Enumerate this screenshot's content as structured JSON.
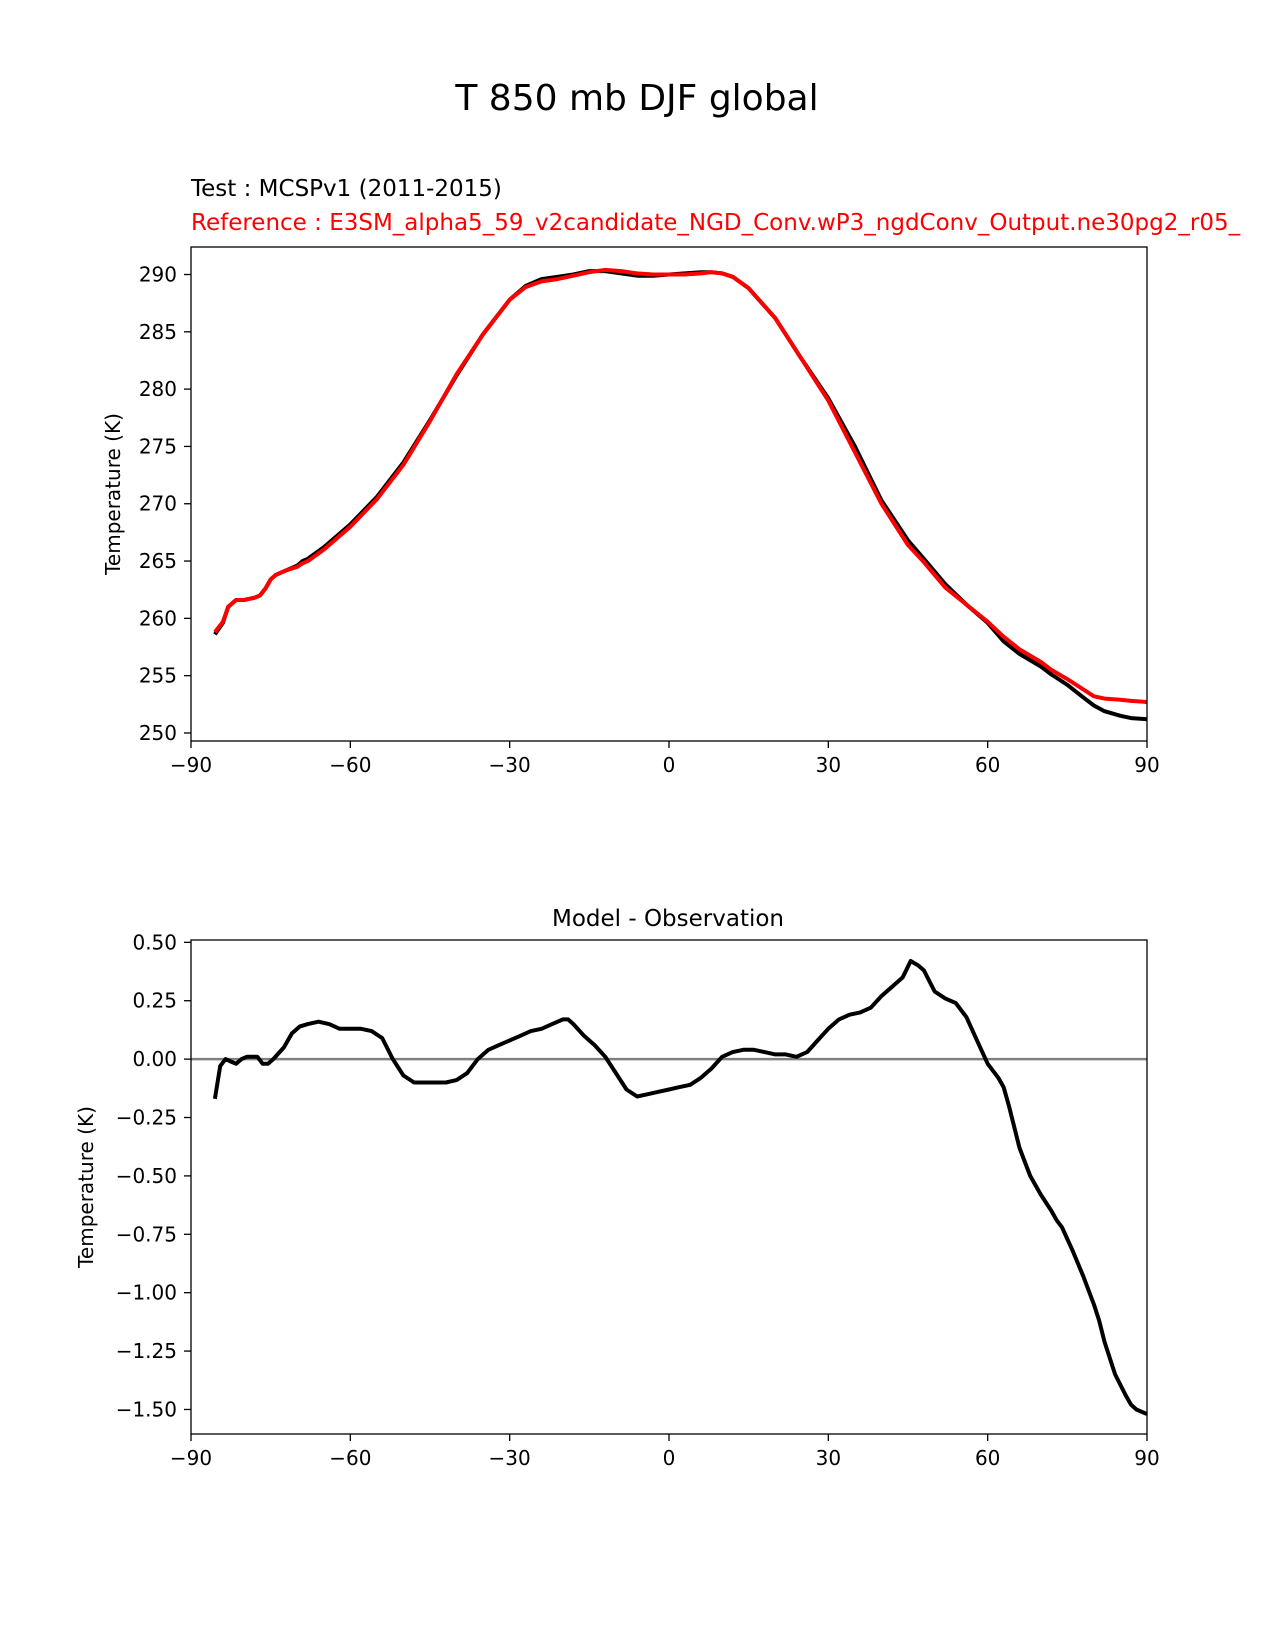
{
  "figure_title": "T 850 mb DJF global",
  "chart_data": [
    {
      "type": "line",
      "name": "top",
      "title_test": "Test : MCSPv1 (2011-2015)",
      "title_reference": "Reference : E3SM_alpha5_59_v2candidate_NGD_Conv.wP3_ngdConv_Output.ne30pg2_r05_",
      "xlabel": "",
      "ylabel": "Temperature (K)",
      "xlim": [
        -90,
        90
      ],
      "ylim": [
        249.3,
        292.4
      ],
      "xticks": [
        -90,
        -60,
        -30,
        0,
        30,
        60,
        90
      ],
      "xtick_labels": [
        "−90",
        "−60",
        "−30",
        "0",
        "30",
        "60",
        "90"
      ],
      "yticks": [
        250,
        255,
        260,
        265,
        270,
        275,
        280,
        285,
        290
      ],
      "ytick_labels": [
        "250",
        "255",
        "260",
        "265",
        "270",
        "275",
        "280",
        "285",
        "290"
      ],
      "series": [
        {
          "name": "Test",
          "color": "#000000",
          "x": [
            -85.5,
            -84,
            -83,
            -81.5,
            -80,
            -78,
            -77,
            -76,
            -75,
            -74,
            -72,
            -70,
            -69,
            -68,
            -65,
            -60,
            -55,
            -50,
            -45,
            -40,
            -35,
            -30,
            -27,
            -24,
            -21,
            -18,
            -15,
            -12,
            -9,
            -6,
            -3,
            0,
            3,
            6,
            8,
            10,
            12,
            15,
            20,
            25,
            30,
            35,
            40,
            45,
            48,
            52,
            56,
            60,
            63,
            66,
            70,
            72,
            75,
            78,
            80,
            82,
            85,
            87,
            90
          ],
          "values": [
            258.6,
            259.6,
            261.0,
            261.6,
            261.6,
            261.8,
            262.0,
            262.6,
            263.4,
            263.8,
            264.2,
            264.6,
            265.0,
            265.2,
            266.2,
            268.2,
            270.6,
            273.6,
            277.3,
            281.2,
            284.8,
            287.8,
            289.0,
            289.6,
            289.8,
            290.0,
            290.3,
            290.3,
            290.1,
            289.9,
            289.9,
            290.0,
            290.1,
            290.2,
            290.2,
            290.1,
            289.8,
            288.8,
            286.2,
            282.6,
            279.2,
            275.0,
            270.3,
            266.8,
            265.2,
            263.0,
            261.2,
            259.6,
            258.0,
            256.9,
            255.8,
            255.1,
            254.2,
            253.1,
            252.4,
            251.9,
            251.5,
            251.3,
            251.2
          ]
        },
        {
          "name": "Reference",
          "color": "#ff0000",
          "x": [
            -85.5,
            -84,
            -83,
            -81.5,
            -80,
            -78,
            -77,
            -76,
            -75,
            -74,
            -72,
            -70,
            -69,
            -68,
            -65,
            -60,
            -55,
            -50,
            -45,
            -40,
            -35,
            -30,
            -27,
            -24,
            -21,
            -18,
            -15,
            -12,
            -9,
            -6,
            -3,
            0,
            3,
            6,
            8,
            10,
            12,
            15,
            20,
            25,
            30,
            35,
            40,
            45,
            48,
            52,
            56,
            60,
            63,
            66,
            70,
            72,
            75,
            78,
            80,
            82,
            85,
            87,
            90
          ],
          "values": [
            258.8,
            259.7,
            261.0,
            261.6,
            261.6,
            261.8,
            262.0,
            262.6,
            263.4,
            263.8,
            264.2,
            264.5,
            264.8,
            265.0,
            266.0,
            268.0,
            270.4,
            273.4,
            277.2,
            281.3,
            284.8,
            287.8,
            288.9,
            289.4,
            289.6,
            289.9,
            290.2,
            290.4,
            290.3,
            290.1,
            290.0,
            290.0,
            290.0,
            290.1,
            290.2,
            290.1,
            289.8,
            288.8,
            286.2,
            282.6,
            279.0,
            274.5,
            270.0,
            266.4,
            264.9,
            262.7,
            261.2,
            259.7,
            258.4,
            257.3,
            256.2,
            255.5,
            254.7,
            253.8,
            253.2,
            253.0,
            252.9,
            252.8,
            252.7
          ]
        }
      ]
    },
    {
      "type": "line",
      "name": "bottom",
      "title": "Model - Observation",
      "xlabel": "",
      "ylabel": "Temperature (K)",
      "xlim": [
        -90,
        90
      ],
      "ylim": [
        -1.605,
        0.51
      ],
      "xticks": [
        -90,
        -60,
        -30,
        0,
        30,
        60,
        90
      ],
      "xtick_labels": [
        "−90",
        "−60",
        "−30",
        "0",
        "30",
        "60",
        "90"
      ],
      "yticks": [
        0.5,
        0.25,
        0.0,
        -0.25,
        -0.5,
        -0.75,
        -1.0,
        -1.25,
        -1.5
      ],
      "ytick_labels": [
        "0.50",
        "0.25",
        "0.00",
        "−0.25",
        "−0.50",
        "−0.75",
        "−1.00",
        "−1.25",
        "−1.50"
      ],
      "zero_line_color": "#808080",
      "series": [
        {
          "name": "Difference",
          "color": "#000000",
          "x": [
            -85.5,
            -84.5,
            -83.5,
            -82.5,
            -81.5,
            -80.5,
            -79.5,
            -78.5,
            -77.5,
            -76.5,
            -75.5,
            -74.5,
            -72.5,
            -71,
            -69.5,
            -68,
            -66,
            -64,
            -62,
            -60,
            -58,
            -56,
            -54,
            -52,
            -50,
            -48,
            -46,
            -44,
            -42,
            -40,
            -38,
            -36,
            -34,
            -32,
            -30,
            -28,
            -26,
            -24,
            -22,
            -20,
            -19,
            -18,
            -16,
            -14,
            -12,
            -10,
            -8,
            -6,
            -4,
            -2,
            0,
            2,
            4,
            6,
            8,
            10,
            12,
            14,
            16,
            18,
            20,
            22,
            24,
            26,
            28,
            30,
            32,
            34,
            36,
            38,
            40,
            42,
            44,
            45.5,
            47,
            48,
            50,
            52,
            54,
            56,
            58,
            60,
            61,
            62,
            63,
            64,
            66,
            68,
            70,
            72,
            73,
            74,
            75,
            76,
            78,
            80,
            81,
            82,
            84,
            86,
            87,
            88,
            90
          ],
          "values": [
            -0.17,
            -0.03,
            0.0,
            -0.01,
            -0.02,
            0.0,
            0.01,
            0.01,
            0.01,
            -0.02,
            -0.02,
            0.0,
            0.05,
            0.11,
            0.14,
            0.15,
            0.16,
            0.15,
            0.13,
            0.13,
            0.13,
            0.12,
            0.09,
            0.0,
            -0.07,
            -0.1,
            -0.1,
            -0.1,
            -0.1,
            -0.09,
            -0.06,
            0.0,
            0.04,
            0.06,
            0.08,
            0.1,
            0.12,
            0.13,
            0.15,
            0.17,
            0.17,
            0.15,
            0.1,
            0.06,
            0.01,
            -0.06,
            -0.13,
            -0.16,
            -0.15,
            -0.14,
            -0.13,
            -0.12,
            -0.11,
            -0.08,
            -0.04,
            0.01,
            0.03,
            0.04,
            0.04,
            0.03,
            0.02,
            0.02,
            0.01,
            0.03,
            0.08,
            0.13,
            0.17,
            0.19,
            0.2,
            0.22,
            0.27,
            0.31,
            0.35,
            0.42,
            0.4,
            0.38,
            0.29,
            0.26,
            0.24,
            0.18,
            0.08,
            -0.02,
            -0.05,
            -0.08,
            -0.12,
            -0.2,
            -0.38,
            -0.5,
            -0.58,
            -0.65,
            -0.69,
            -0.72,
            -0.77,
            -0.82,
            -0.93,
            -1.05,
            -1.12,
            -1.21,
            -1.35,
            -1.44,
            -1.48,
            -1.5,
            -1.52
          ]
        }
      ]
    }
  ]
}
